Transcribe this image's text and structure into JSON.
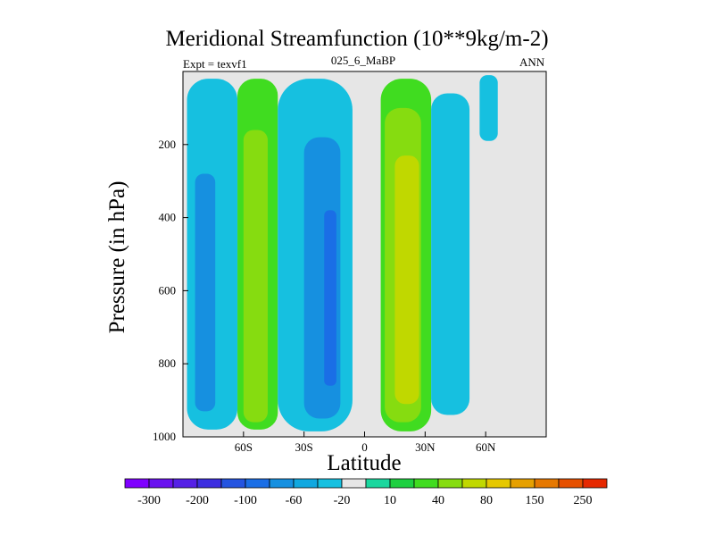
{
  "chart_data": {
    "type": "contour",
    "title": "Meridional Streamfunction (10**9kg/m-2)",
    "left_label": "Expt = texvf1",
    "center_label": "025_6_MaBP",
    "right_label": "ANN",
    "xlabel": "Latitude",
    "ylabel": "Pressure (in hPa)",
    "x_range": [
      -90,
      90
    ],
    "y_range": [
      0,
      1000
    ],
    "x_ticks": [
      {
        "v": -60,
        "label": "60S"
      },
      {
        "v": -30,
        "label": "30S"
      },
      {
        "v": 0,
        "label": "0"
      },
      {
        "v": 30,
        "label": "30N"
      },
      {
        "v": 60,
        "label": "60N"
      }
    ],
    "y_ticks": [
      {
        "v": 200,
        "label": "200"
      },
      {
        "v": 400,
        "label": "400"
      },
      {
        "v": 600,
        "label": "600"
      },
      {
        "v": 800,
        "label": "800"
      },
      {
        "v": 1000,
        "label": "1000"
      }
    ],
    "colorbar": {
      "colors": [
        "#7f00ff",
        "#6a12f0",
        "#5520e6",
        "#3c2ee0",
        "#2454e0",
        "#1a6ee6",
        "#1690e0",
        "#10a8e0",
        "#16c0e0",
        "#e6e6e6",
        "#1ad79e",
        "#1ed040",
        "#40dc20",
        "#86dc10",
        "#c0d800",
        "#e6c800",
        "#e6a000",
        "#e67800",
        "#e65000",
        "#e62800"
      ],
      "labels": [
        "-300",
        "-200",
        "-100",
        "-60",
        "-20",
        "10",
        "40",
        "80",
        "150",
        "250"
      ]
    },
    "regions": [
      {
        "name": "sh-outer-cell",
        "level": -20,
        "lat_range": [
          -88,
          -63
        ],
        "p_range": [
          20,
          980
        ]
      },
      {
        "name": "sh-outer-core",
        "level": -60,
        "lat_range": [
          -84,
          -74
        ],
        "p_range": [
          280,
          930
        ]
      },
      {
        "name": "sh-ferrel",
        "level": 20,
        "lat_range": [
          -63,
          -43
        ],
        "p_range": [
          20,
          980
        ]
      },
      {
        "name": "sh-ferrel-core",
        "level": 40,
        "lat_range": [
          -60,
          -48
        ],
        "p_range": [
          160,
          960
        ]
      },
      {
        "name": "sh-hadley",
        "level": -20,
        "lat_range": [
          -43,
          -6
        ],
        "p_range": [
          20,
          985
        ]
      },
      {
        "name": "sh-hadley-1",
        "level": -60,
        "lat_range": [
          -30,
          -12
        ],
        "p_range": [
          180,
          950
        ]
      },
      {
        "name": "sh-hadley-2",
        "level": -100,
        "lat_range": [
          -20,
          -14
        ],
        "p_range": [
          380,
          860
        ]
      },
      {
        "name": "nh-hadley",
        "level": 20,
        "lat_range": [
          8,
          33
        ],
        "p_range": [
          20,
          985
        ]
      },
      {
        "name": "nh-hadley-1",
        "level": 40,
        "lat_range": [
          10,
          28
        ],
        "p_range": [
          100,
          960
        ]
      },
      {
        "name": "nh-hadley-2",
        "level": 80,
        "lat_range": [
          15,
          27
        ],
        "p_range": [
          230,
          910
        ]
      },
      {
        "name": "nh-ferrel",
        "level": -20,
        "lat_range": [
          33,
          52
        ],
        "p_range": [
          60,
          940
        ]
      },
      {
        "name": "polar-cell",
        "level": -20,
        "lat_range": [
          57,
          66
        ],
        "p_range": [
          10,
          190
        ]
      }
    ]
  }
}
